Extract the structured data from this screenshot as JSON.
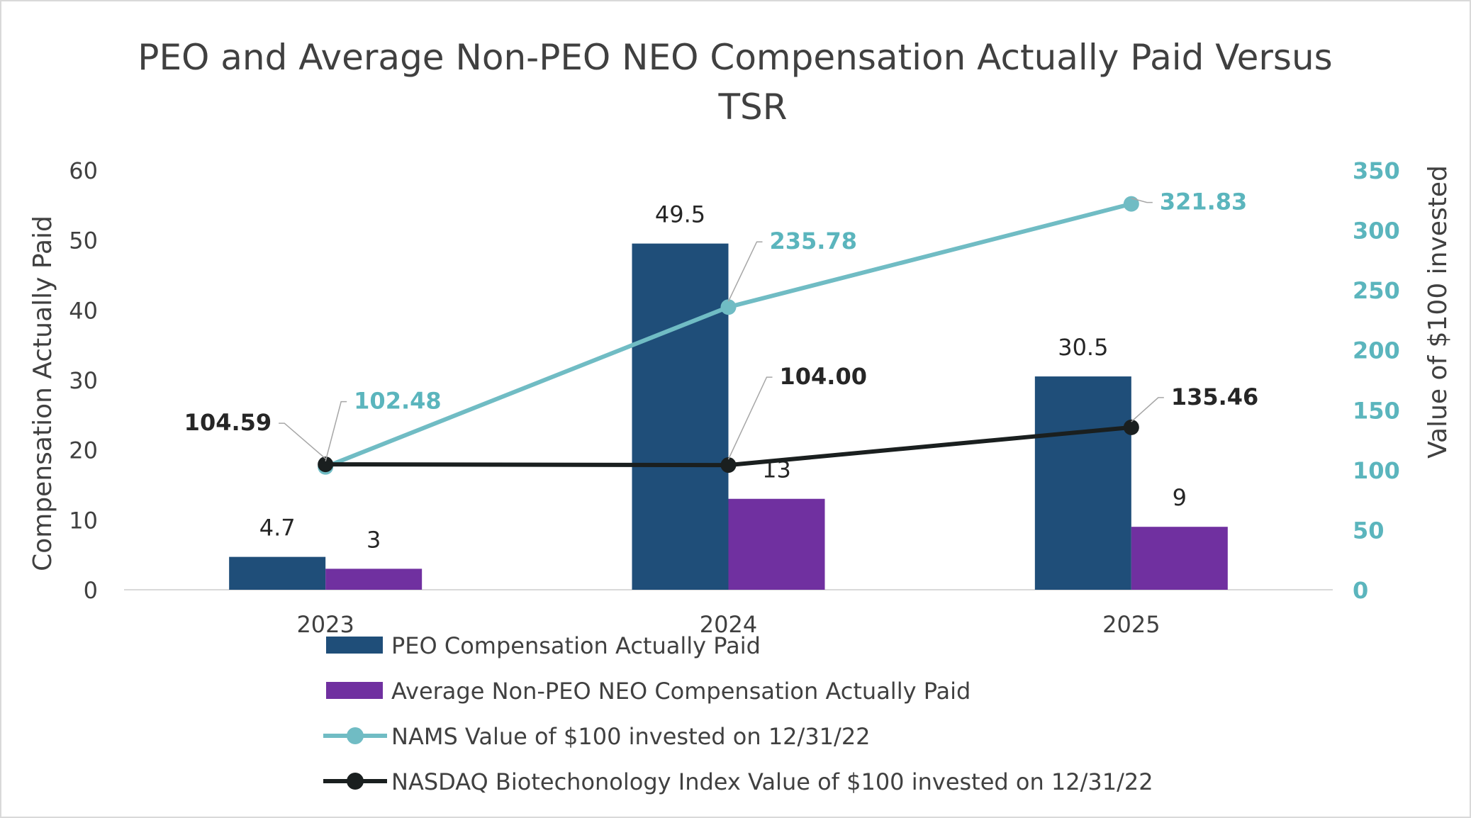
{
  "chart_data": {
    "type": "bar",
    "title_lines": [
      "PEO and Average Non-PEO NEO Compensation Actually Paid Versus",
      "TSR"
    ],
    "categories": [
      "2023",
      "2024",
      "2025"
    ],
    "ylabel": "Compensation Actually Paid",
    "ylabel_right": "Value of $100 invested",
    "ylim": [
      0,
      60
    ],
    "ylim_right": [
      0,
      350
    ],
    "yticks": [
      "0",
      "10",
      "20",
      "30",
      "40",
      "50",
      "60"
    ],
    "yticks_right": [
      "0",
      "50",
      "100",
      "150",
      "200",
      "250",
      "300",
      "350"
    ],
    "bar_series": [
      {
        "name": "PEO Compensation Actually Paid",
        "values": [
          4.7,
          49.5,
          30.5
        ],
        "labels": [
          "4.7",
          "49.5",
          "30.5"
        ],
        "color": "#1f4e79"
      },
      {
        "name": "Average Non-PEO NEO Compensation Actually Paid",
        "values": [
          3,
          13,
          9
        ],
        "labels": [
          "3",
          "13",
          "9"
        ],
        "color": "#7030a0"
      }
    ],
    "line_series": [
      {
        "name": "NAMS Value of $100 invested on 12/31/22",
        "values": [
          102.48,
          235.78,
          321.83
        ],
        "labels": [
          "102.48",
          "235.78",
          "321.83"
        ],
        "color": "#70bcc4"
      },
      {
        "name": "NASDAQ Biotechonology Index Value of $100 invested on 12/31/22",
        "values": [
          104.59,
          104.0,
          135.46
        ],
        "labels": [
          "104.59",
          "104.00",
          "135.46"
        ],
        "color": "#1a1f1f"
      }
    ],
    "legend_position": "bottom",
    "grid": false,
    "colors": {
      "axis_left": "#404040",
      "axis_right": "#5bb5bd",
      "axis_line": "#d9d9d9",
      "title": "#404040"
    }
  }
}
